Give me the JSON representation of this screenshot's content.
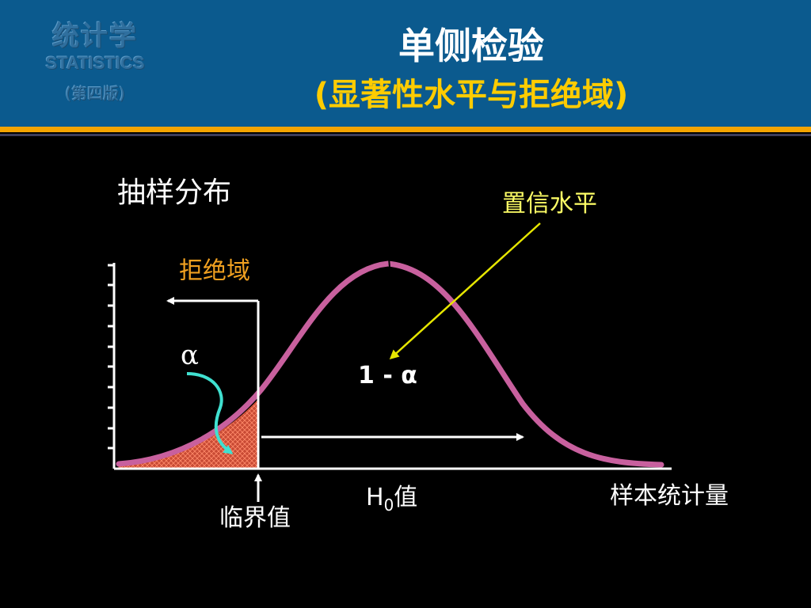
{
  "header": {
    "logo": {
      "cn": "统计学",
      "en": "STATISTICS",
      "edition": "(第四版)"
    },
    "title": "单侧检验",
    "subtitle": "(显著性水平与拒绝域)"
  },
  "diagram": {
    "sampling_distribution_label": "抽样分布",
    "confidence_level_label": "置信水平",
    "rejection_region_label": "拒绝域",
    "alpha_symbol": "α",
    "one_minus_alpha": "1 - α",
    "h0_label": "H",
    "h0_subscript": "0",
    "h0_suffix": "值",
    "critical_value_label": "临界值",
    "sample_statistic_label": "样本统计量",
    "colors": {
      "curve": "#c8609e",
      "rejection_fill": "#d2523a",
      "rejection_label": "#f0a020",
      "confidence_label": "#ffff66",
      "confidence_arrow": "#e6e600",
      "alpha_arrow": "#40e0d0",
      "axis": "#ffffff",
      "text": "#ffffff"
    }
  }
}
